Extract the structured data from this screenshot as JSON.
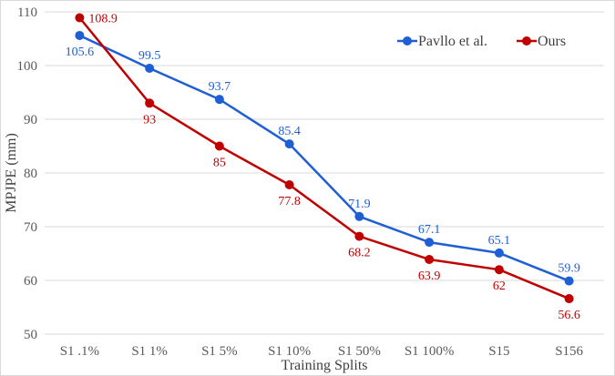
{
  "chart_data": {
    "type": "line",
    "title": "",
    "xlabel": "Training Splits",
    "ylabel": "MPJPE (mm)",
    "ylim": [
      50,
      110
    ],
    "yticks": [
      50,
      60,
      70,
      80,
      90,
      100,
      110
    ],
    "grid": "horizontal",
    "legend_position": "top-right",
    "categories": [
      "S1 .1%",
      "S1 1%",
      "S1 5%",
      "S1 10%",
      "S1 50%",
      "S1 100%",
      "S15",
      "S156"
    ],
    "series": [
      {
        "name": "Pavllo et al.",
        "color": "#1f5fd4",
        "values": [
          105.6,
          99.5,
          93.7,
          85.4,
          71.9,
          67.1,
          65.1,
          59.9
        ],
        "labels": [
          "105.6",
          "99.5",
          "93.7",
          "85.4",
          "71.9",
          "67.1",
          "65.1",
          "59.9"
        ]
      },
      {
        "name": "Ours",
        "color": "#c00000",
        "values": [
          108.9,
          93,
          85,
          77.8,
          68.2,
          63.9,
          62,
          56.6
        ],
        "labels": [
          "108.9",
          "93",
          "85",
          "77.8",
          "68.2",
          "63.9",
          "62",
          "56.6"
        ]
      }
    ]
  }
}
